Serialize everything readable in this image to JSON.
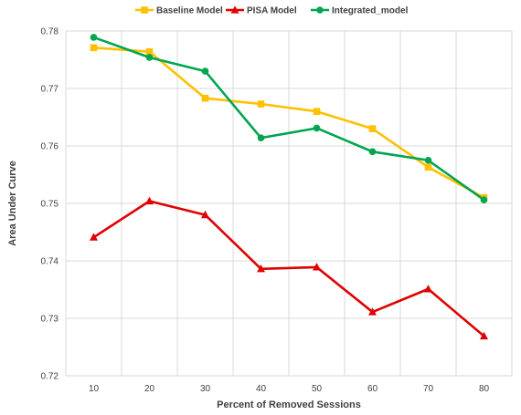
{
  "chart_data": {
    "type": "line",
    "title": "",
    "xlabel": "Percent of Removed Sessions",
    "ylabel": "Area Under Curve",
    "x": [
      10,
      20,
      30,
      40,
      50,
      60,
      70,
      80
    ],
    "ylim": [
      0.72,
      0.78
    ],
    "yticks": [
      0.72,
      0.73,
      0.74,
      0.75,
      0.76,
      0.77,
      0.78
    ],
    "ytick_labels": [
      "0.72",
      "0.73",
      "0.74",
      "0.75",
      "0.76",
      "0.77",
      "0.78"
    ],
    "xtick_labels": [
      "10",
      "20",
      "30",
      "40",
      "50",
      "60",
      "70",
      "80"
    ],
    "grid": true,
    "legend_position": "top",
    "series": [
      {
        "name": "Baseline Model",
        "color": "#FFC000",
        "marker": "square",
        "values": [
          0.7771,
          0.7764,
          0.7683,
          0.7673,
          0.766,
          0.763,
          0.7563,
          0.751
        ]
      },
      {
        "name": "PISA Model",
        "color": "#E00000",
        "marker": "triangle",
        "values": [
          0.7441,
          0.7504,
          0.748,
          0.7386,
          0.7389,
          0.7311,
          0.7351,
          0.7269
        ]
      },
      {
        "name": "Integrated_model",
        "color": "#00A550",
        "marker": "circle",
        "values": [
          0.7789,
          0.7754,
          0.773,
          0.7614,
          0.7631,
          0.759,
          0.7575,
          0.7506
        ]
      }
    ]
  }
}
